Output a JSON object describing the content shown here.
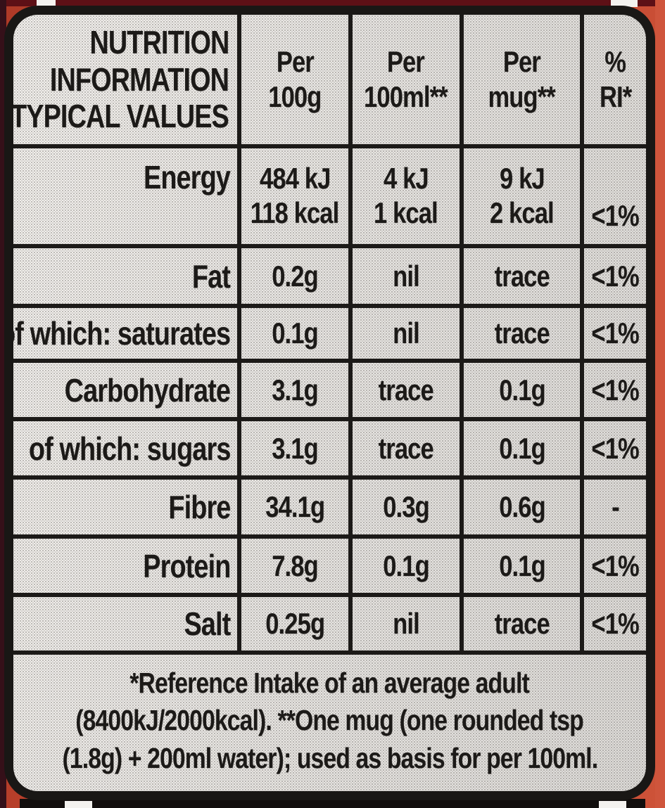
{
  "colors": {
    "ink": "#1c1a18",
    "label_bg": "#e8e6e3",
    "package_red": "#c2452f"
  },
  "table": {
    "title_lines": [
      "NUTRITION",
      "INFORMATION",
      "TYPICAL VALUES"
    ],
    "col_headers": [
      {
        "l1": "Per",
        "l2": "100g"
      },
      {
        "l1": "Per",
        "l2": "100ml**"
      },
      {
        "l1": "Per",
        "l2": "mug**"
      },
      {
        "l1": "%",
        "l2": "RI*"
      }
    ],
    "energy_row": {
      "label": "Energy",
      "per_100g_kj": "484 kJ",
      "per_100g_kcal": "118 kcal",
      "per_100ml_kj": "4 kJ",
      "per_100ml_kcal": "1 kcal",
      "per_mug_kj": "9 kJ",
      "per_mug_kcal": "2 kcal",
      "ri": "<1%"
    },
    "rows": [
      {
        "label": "Fat",
        "per_100g": "0.2g",
        "per_100ml": "nil",
        "per_mug": "trace",
        "ri": "<1%"
      },
      {
        "label": "of which: saturates",
        "per_100g": "0.1g",
        "per_100ml": "nil",
        "per_mug": "trace",
        "ri": "<1%"
      },
      {
        "label": "Carbohydrate",
        "per_100g": "3.1g",
        "per_100ml": "trace",
        "per_mug": "0.1g",
        "ri": "<1%"
      },
      {
        "label": "of which: sugars",
        "per_100g": "3.1g",
        "per_100ml": "trace",
        "per_mug": "0.1g",
        "ri": "<1%"
      },
      {
        "label": "Fibre",
        "per_100g": "34.1g",
        "per_100ml": "0.3g",
        "per_mug": "0.6g",
        "ri": "-"
      },
      {
        "label": "Protein",
        "per_100g": "7.8g",
        "per_100ml": "0.1g",
        "per_mug": "0.1g",
        "ri": "<1%"
      },
      {
        "label": "Salt",
        "per_100g": "0.25g",
        "per_100ml": "nil",
        "per_mug": "trace",
        "ri": "<1%"
      }
    ],
    "footnote_lines": [
      "*Reference Intake of an average adult",
      "(8400kJ/2000kcal). **One mug (one rounded tsp",
      "(1.8g) + 200ml water); used as basis for per 100ml."
    ]
  }
}
